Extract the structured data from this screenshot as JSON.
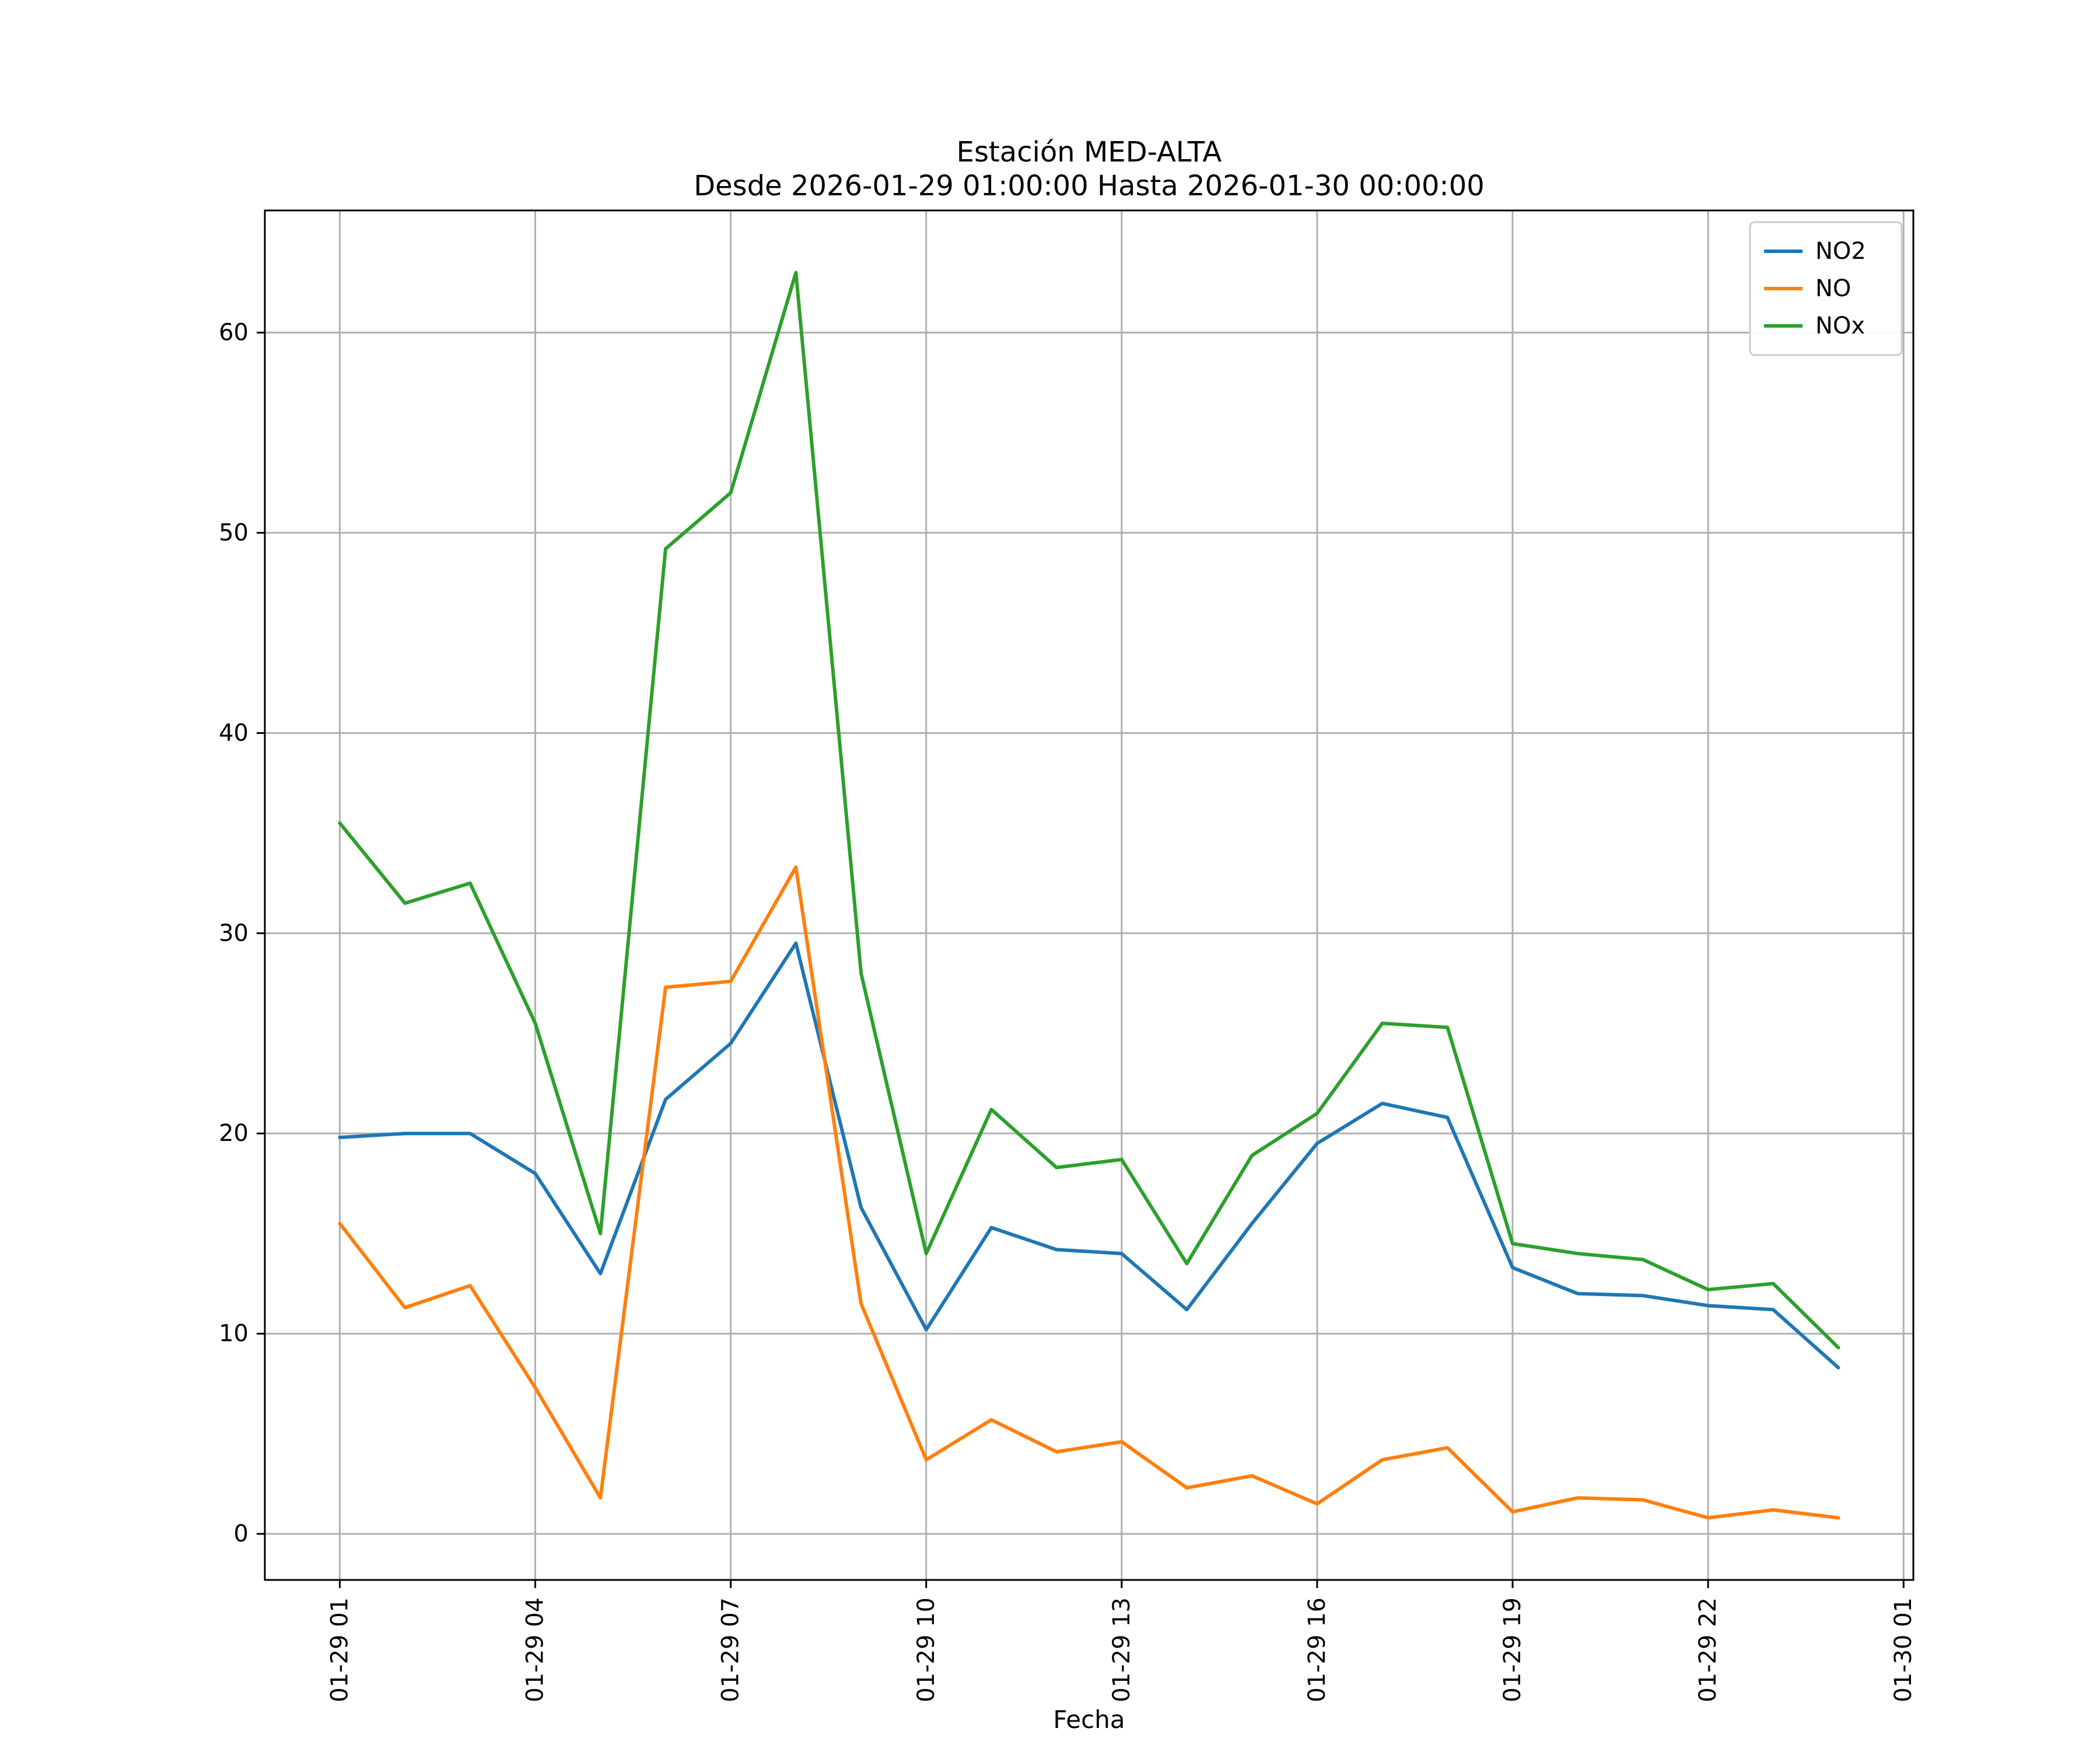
{
  "title": "Estación MED-ALTA",
  "subtitle": "Desde 2026-01-29 01:00:00 Hasta 2026-01-30 00:00:00",
  "colors": {
    "background": "#ffffff",
    "grid": "#b0b0b0",
    "spine": "#000000",
    "legend_border": "#cccccc"
  },
  "chart_data": {
    "type": "line",
    "title": "Estación MED-ALTA",
    "subtitle": "Desde 2026-01-29 01:00:00 Hasta 2026-01-30 00:00:00",
    "xlabel": "Fecha",
    "ylabel": "",
    "grid": true,
    "legend_position": "upper right",
    "x_hours": [
      1,
      2,
      3,
      4,
      5,
      6,
      7,
      8,
      9,
      10,
      11,
      12,
      13,
      14,
      15,
      16,
      17,
      18,
      19,
      20,
      21,
      22,
      23,
      24
    ],
    "x_tick_hours": [
      1,
      4,
      7,
      10,
      13,
      16,
      19,
      22,
      25
    ],
    "x_tick_labels": [
      "01-29 01",
      "01-29 04",
      "01-29 07",
      "01-29 10",
      "01-29 13",
      "01-29 16",
      "01-29 19",
      "01-29 22",
      "01-30 01"
    ],
    "y_ticks": [
      0,
      10,
      20,
      30,
      40,
      50,
      60
    ],
    "xlim": [
      -0.15,
      25.15
    ],
    "ylim": [
      -2.3,
      66.1
    ],
    "series": [
      {
        "name": "NO2",
        "color": "#1f77b4",
        "values": [
          19.8,
          20.0,
          20.0,
          18.0,
          13.0,
          21.7,
          24.5,
          29.5,
          16.3,
          10.2,
          15.3,
          14.2,
          14.0,
          11.2,
          15.5,
          19.5,
          21.5,
          20.8,
          13.3,
          12.0,
          11.9,
          11.4,
          11.2,
          8.3
        ]
      },
      {
        "name": "NO",
        "color": "#ff7f0e",
        "values": [
          15.5,
          11.3,
          12.4,
          7.3,
          1.8,
          27.3,
          27.6,
          33.3,
          11.5,
          3.7,
          5.7,
          4.1,
          4.6,
          2.3,
          2.9,
          1.5,
          3.7,
          4.3,
          1.1,
          1.8,
          1.7,
          0.8,
          1.2,
          0.8
        ]
      },
      {
        "name": "NOx",
        "color": "#2ca02c",
        "values": [
          35.5,
          31.5,
          32.5,
          25.5,
          15.0,
          49.2,
          52.0,
          63.0,
          28.0,
          14.0,
          21.2,
          18.3,
          18.7,
          13.5,
          18.9,
          21.0,
          25.5,
          25.3,
          14.5,
          14.0,
          13.7,
          12.2,
          12.5,
          9.3
        ]
      }
    ]
  }
}
